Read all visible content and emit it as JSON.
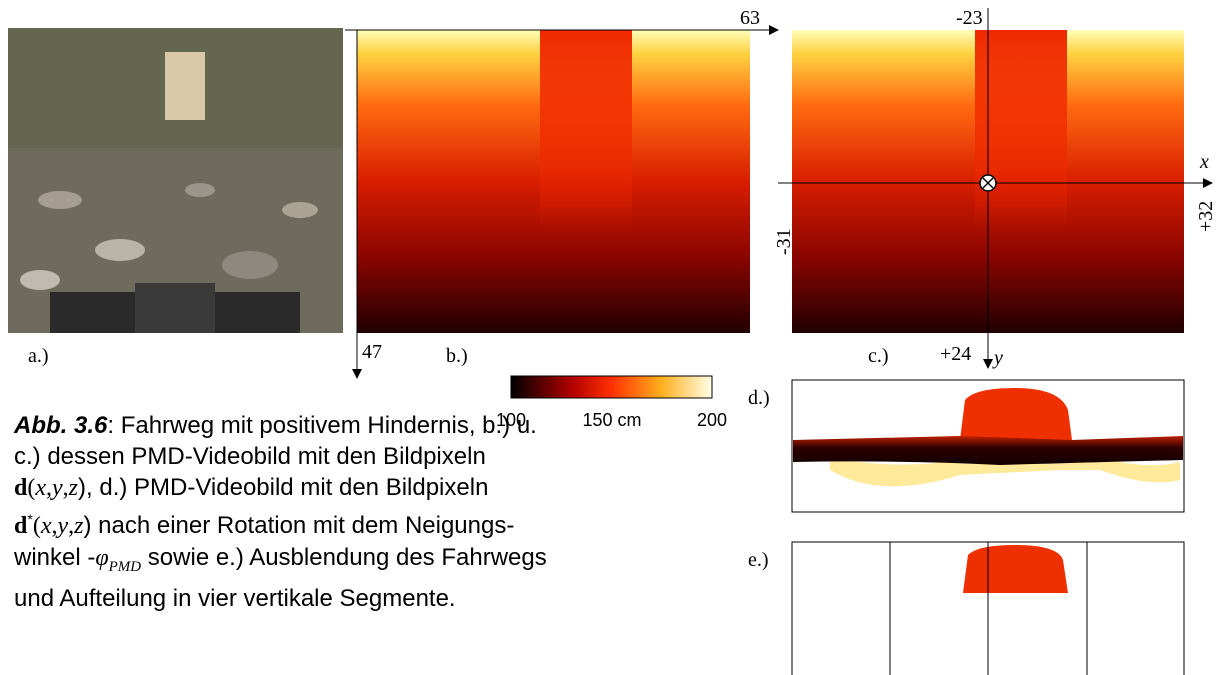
{
  "panels": {
    "a": "a.)",
    "b": "b.)",
    "c": "c.)",
    "d": "d.)",
    "e": "e.)"
  },
  "axes_b": {
    "x_end": "63",
    "y_end": "47"
  },
  "axes_c": {
    "top": "-23",
    "x_label": "x",
    "left": "-31",
    "right": "+32",
    "bottom": "+24",
    "y_label": "y"
  },
  "colorbar": {
    "labels": [
      "100",
      "150 cm",
      "200"
    ]
  },
  "caption": {
    "lines": [
      [
        "Abb. 3.6",
        ": Fahrweg mit positivem Hindernis, b.) u."
      ],
      [
        "c.) dessen PMD-Videobild mit den Bildpixeln"
      ],
      [
        "d",
        "(",
        "x",
        ",",
        "y",
        ",",
        "z",
        "), d.) PMD-Videobild mit den Bildpixeln"
      ],
      [
        "d",
        "*",
        "(",
        "x",
        ",",
        "y",
        ",",
        "z",
        ") nach einer Rotation mit dem Neigungs-"
      ],
      [
        "winkel -",
        "φ",
        "PMD",
        " sowie e.) Ausblendung des Fahrwegs"
      ],
      [
        "und Aufteilung in vier vertikale Segmente."
      ]
    ]
  }
}
